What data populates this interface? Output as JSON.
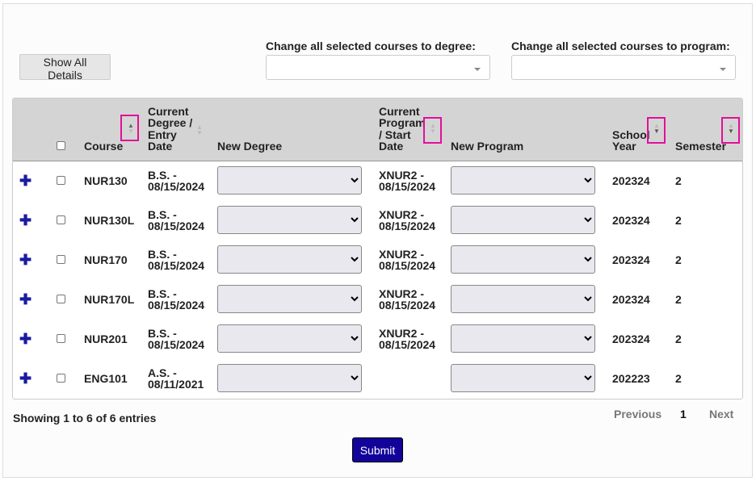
{
  "toolbar": {
    "show_all_details": "Show All Details",
    "degree_label": "Change all selected courses to degree:",
    "program_label": "Change all selected courses to program:"
  },
  "table": {
    "headers": {
      "course": "Course",
      "current_degree": "Current Degree / Entry Date",
      "new_degree": "New Degree",
      "current_program": "Current Program / Start Date",
      "new_program": "New Program",
      "school_year": "School Year",
      "semester": "Semester"
    },
    "rows": [
      {
        "course": "NUR130",
        "degree": "B.S. - 08/15/2024",
        "program": "XNUR2 - 08/15/2024",
        "year": "202324",
        "semester": "2"
      },
      {
        "course": "NUR130L",
        "degree": "B.S. - 08/15/2024",
        "program": "XNUR2 - 08/15/2024",
        "year": "202324",
        "semester": "2"
      },
      {
        "course": "NUR170",
        "degree": "B.S. - 08/15/2024",
        "program": "XNUR2 - 08/15/2024",
        "year": "202324",
        "semester": "2"
      },
      {
        "course": "NUR170L",
        "degree": "B.S. - 08/15/2024",
        "program": "XNUR2 - 08/15/2024",
        "year": "202324",
        "semester": "2"
      },
      {
        "course": "NUR201",
        "degree": "B.S. - 08/15/2024",
        "program": "XNUR2 - 08/15/2024",
        "year": "202324",
        "semester": "2"
      },
      {
        "course": "ENG101",
        "degree": "A.S. - 08/11/2021",
        "program": "",
        "year": "202223",
        "semester": "2"
      }
    ]
  },
  "footer": {
    "info": "Showing 1 to 6 of 6 entries",
    "previous": "Previous",
    "page": "1",
    "next": "Next",
    "submit": "Submit"
  },
  "colors": {
    "highlight": "#e0109a",
    "submit": "#12039a",
    "header": "#d4d4d4"
  }
}
